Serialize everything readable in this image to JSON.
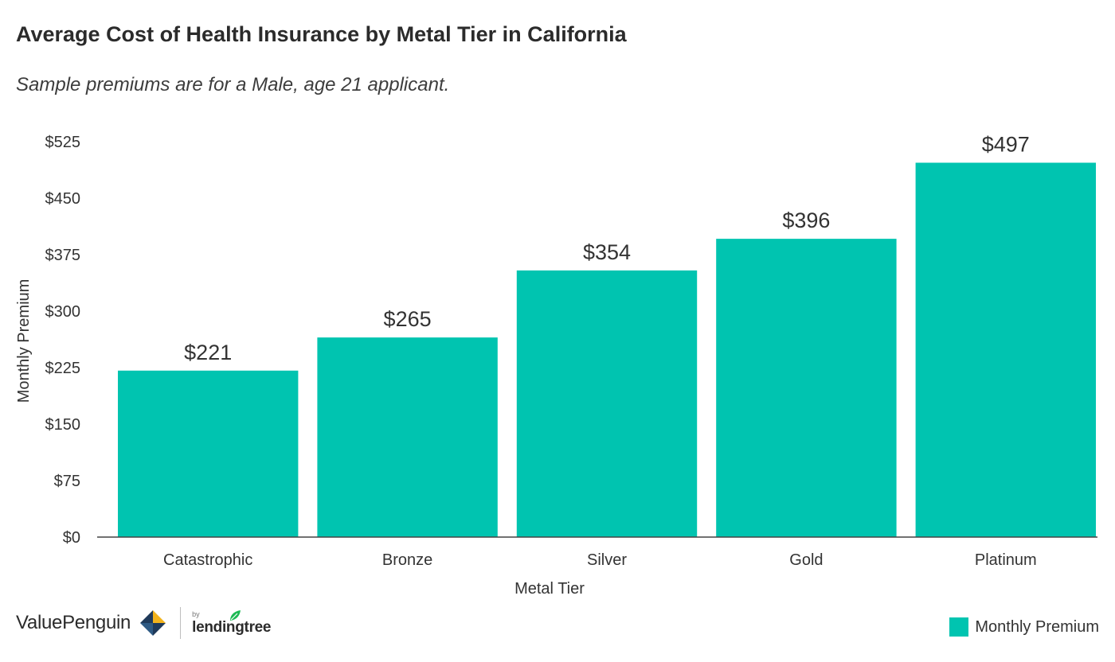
{
  "colors": {
    "bar": "#00c4b0",
    "axis": "#444444",
    "text": "#333333"
  },
  "chart_data": {
    "type": "bar",
    "title": "Average Cost of Health Insurance by Metal Tier in California",
    "subtitle": "Sample premiums are for a Male, age 21 applicant.",
    "xlabel": "Metal Tier",
    "ylabel": "Monthly Premium",
    "categories": [
      "Catastrophic",
      "Bronze",
      "Silver",
      "Gold",
      "Platinum"
    ],
    "series": [
      {
        "name": "Monthly Premium",
        "values": [
          221,
          265,
          354,
          396,
          497
        ],
        "labels": [
          "$221",
          "$265",
          "$354",
          "$396",
          "$497"
        ]
      }
    ],
    "ylim": [
      0,
      525
    ],
    "yticks": [
      0,
      75,
      150,
      225,
      300,
      375,
      450,
      525
    ],
    "ytick_labels": [
      "$0",
      "$75",
      "$150",
      "$225",
      "$300",
      "$375",
      "$450",
      "$525"
    ],
    "grid": false,
    "legend": "bottom-right"
  },
  "footer": {
    "brand": "ValuePenguin",
    "by": "by",
    "partner": "lendingtree"
  }
}
